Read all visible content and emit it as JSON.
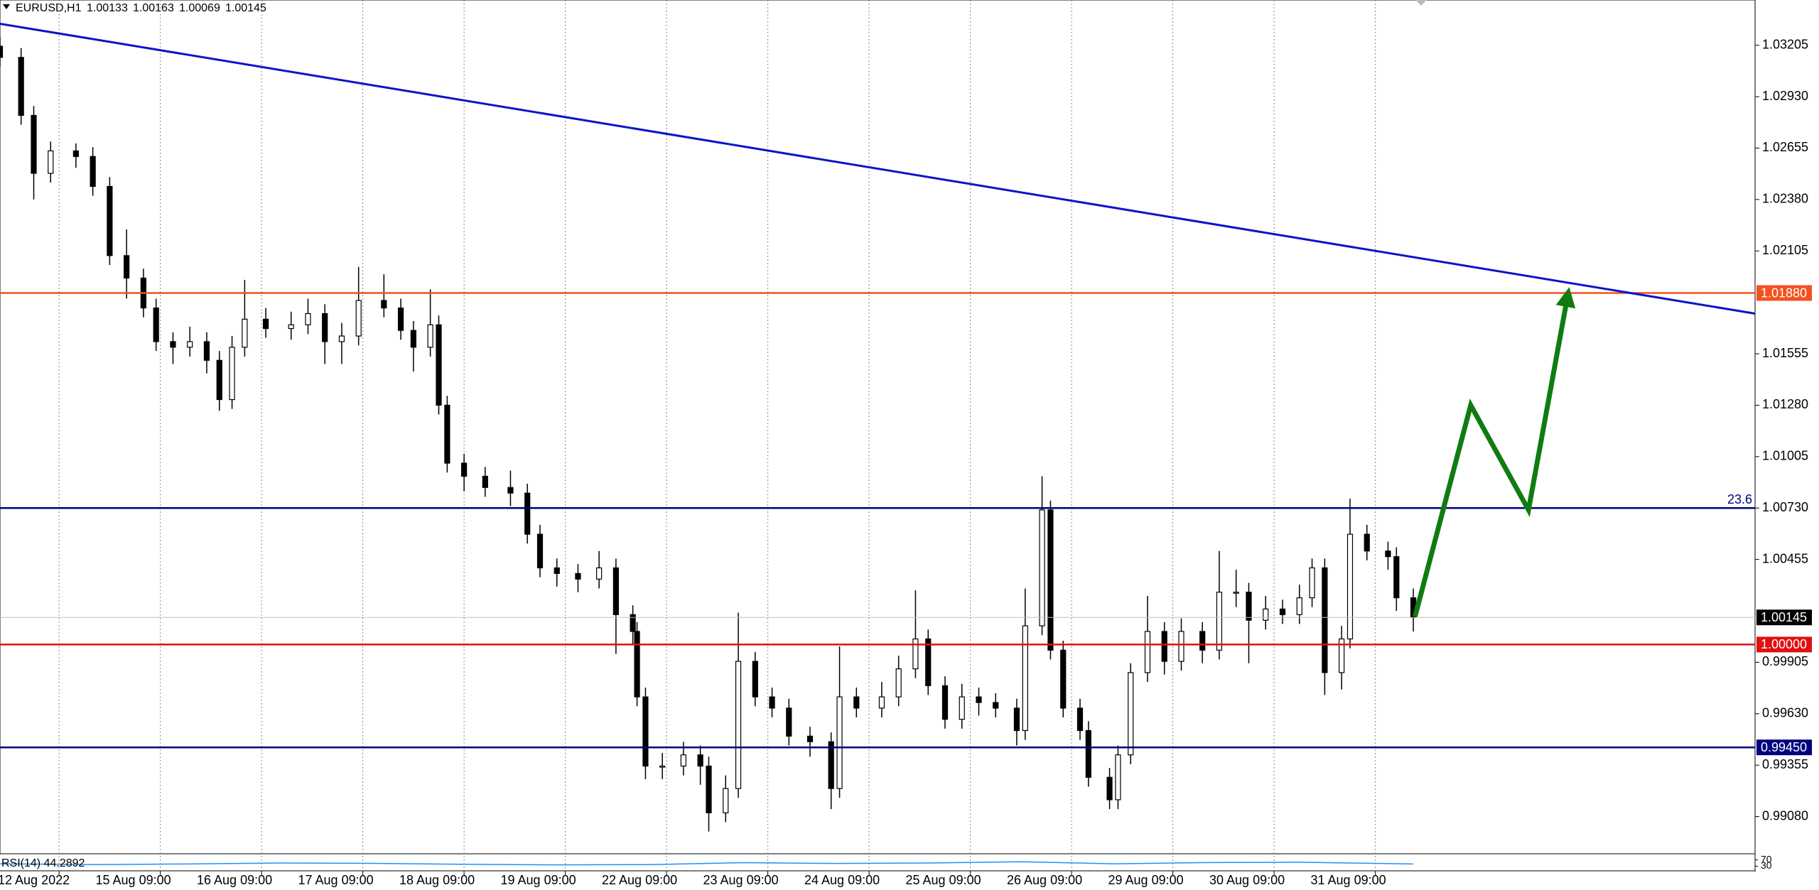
{
  "chart_data": {
    "type": "candlestick",
    "title": "EURUSD,H1",
    "quote": [
      1.00133,
      1.00163,
      1.00069,
      1.00145
    ],
    "x": [
      0,
      5,
      8,
      12,
      18,
      22,
      26,
      30,
      34,
      37,
      41,
      45,
      49,
      52,
      55,
      58,
      63,
      69,
      73,
      77,
      81,
      85,
      91,
      95,
      98,
      102,
      104,
      106,
      110,
      115,
      121,
      125,
      128,
      132,
      137,
      142,
      146,
      150,
      151,
      153,
      157,
      162,
      166,
      168,
      172,
      175,
      179,
      183,
      187,
      192,
      197,
      199,
      203,
      209,
      213,
      217,
      220,
      224,
      228,
      232,
      236,
      241,
      243,
      247,
      249,
      252,
      256,
      258,
      263,
      265,
      268,
      272,
      276,
      280,
      285,
      289,
      293,
      296,
      300,
      304,
      308,
      311,
      314,
      318,
      320,
      324,
      329,
      331,
      335
    ],
    "open": [
      1.032,
      1.0314,
      1.0283,
      1.0252,
      1.0264,
      1.0261,
      1.0245,
      1.0208,
      1.0196,
      1.018,
      1.0162,
      1.0159,
      1.0162,
      1.0152,
      1.0131,
      1.0159,
      1.0174,
      1.0169,
      1.0171,
      1.0177,
      1.0162,
      1.0165,
      1.0184,
      1.018,
      1.0168,
      1.0159,
      1.0171,
      1.0128,
      1.0097,
      1.009,
      1.0084,
      1.0081,
      1.0059,
      1.0041,
      1.0038,
      1.0035,
      1.0041,
      1.0016,
      1.0007,
      0.9972,
      0.9935,
      0.9935,
      0.9941,
      0.9935,
      0.991,
      0.9923,
      0.9991,
      0.9972,
      0.9966,
      0.9951,
      0.9948,
      0.9923,
      0.9972,
      0.9966,
      0.9972,
      0.9987,
      1.0003,
      0.9978,
      0.996,
      0.9972,
      0.9969,
      0.9966,
      0.9954,
      1.001,
      1.0072,
      0.9997,
      0.9966,
      0.9954,
      0.9929,
      0.9917,
      0.9941,
      0.9985,
      1.0007,
      0.9991,
      1.0007,
      0.9997,
      1.0028,
      1.0028,
      1.0013,
      1.0019,
      1.0016,
      1.0025,
      1.0041,
      0.9985,
      1.0003,
      1.0059,
      1.005,
      1.0047,
      1.0025
    ],
    "high": [
      1.0325,
      1.0319,
      1.0288,
      1.0269,
      1.0268,
      1.0266,
      1.025,
      1.0222,
      1.0201,
      1.0185,
      1.0167,
      1.017,
      1.0167,
      1.0157,
      1.0165,
      1.0195,
      1.018,
      1.0178,
      1.0185,
      1.0182,
      1.0172,
      1.0202,
      1.0198,
      1.0185,
      1.0173,
      1.019,
      1.0176,
      1.0133,
      1.0102,
      1.0095,
      1.0093,
      1.0086,
      1.0064,
      1.0046,
      1.0043,
      1.005,
      1.0046,
      1.0021,
      1.0012,
      0.9977,
      0.9942,
      0.9948,
      0.9946,
      0.994,
      0.993,
      1.0017,
      0.9996,
      0.9977,
      0.9971,
      0.9956,
      0.9953,
      0.9999,
      0.9977,
      0.998,
      0.9994,
      1.0029,
      1.0008,
      0.9983,
      0.9979,
      0.9977,
      0.9974,
      0.9971,
      1.003,
      1.009,
      1.0077,
      1.0002,
      0.9971,
      0.9959,
      0.9934,
      0.9946,
      0.999,
      1.0026,
      1.0012,
      1.0014,
      1.0012,
      1.005,
      1.004,
      1.0033,
      1.0026,
      1.0024,
      1.0032,
      1.0046,
      1.0046,
      1.001,
      1.0078,
      1.0064,
      1.0055,
      1.0052,
      1.003
    ],
    "low": [
      1.0309,
      1.0278,
      1.0238,
      1.0247,
      1.0255,
      1.024,
      1.0203,
      1.0185,
      1.0175,
      1.0157,
      1.015,
      1.0154,
      1.0145,
      1.0125,
      1.0126,
      1.0154,
      1.0164,
      1.0163,
      1.0166,
      1.015,
      1.015,
      1.016,
      1.0175,
      1.0163,
      1.0146,
      1.0154,
      1.0123,
      1.0092,
      1.0082,
      1.0079,
      1.0074,
      1.0054,
      1.0036,
      1.0031,
      1.0028,
      1.003,
      0.9995,
      1.0,
      0.9967,
      0.9928,
      0.9928,
      0.993,
      0.9925,
      0.99,
      0.9905,
      0.9918,
      0.9967,
      0.9961,
      0.9946,
      0.994,
      0.9912,
      0.9918,
      0.9961,
      0.9961,
      0.9967,
      0.9982,
      0.9973,
      0.9955,
      0.9955,
      0.9962,
      0.9961,
      0.9946,
      0.9949,
      1.0005,
      0.9992,
      0.9961,
      0.9949,
      0.9924,
      0.9912,
      0.9912,
      0.9936,
      0.998,
      0.9984,
      0.9986,
      0.999,
      0.9992,
      1.002,
      0.999,
      1.0008,
      1.0011,
      1.0011,
      1.002,
      0.9973,
      0.9976,
      0.9998,
      1.0045,
      1.004,
      1.0018,
      1.0007
    ],
    "close": [
      1.0314,
      1.0283,
      1.0252,
      1.0264,
      1.0261,
      1.0245,
      1.0208,
      1.0196,
      1.018,
      1.0162,
      1.0159,
      1.0162,
      1.0152,
      1.0131,
      1.0159,
      1.0174,
      1.0169,
      1.0171,
      1.0177,
      1.0162,
      1.0165,
      1.0184,
      1.018,
      1.0168,
      1.0159,
      1.0171,
      1.0128,
      1.0097,
      1.009,
      1.0084,
      1.0081,
      1.0059,
      1.0041,
      1.0038,
      1.0035,
      1.0041,
      1.0016,
      1.0007,
      0.9972,
      0.9935,
      0.9935,
      0.9941,
      0.9935,
      0.991,
      0.9923,
      0.9991,
      0.9972,
      0.9966,
      0.9951,
      0.9948,
      0.9923,
      0.9972,
      0.9966,
      0.9972,
      0.9987,
      1.0003,
      0.9978,
      0.996,
      0.9972,
      0.9969,
      0.9966,
      0.9954,
      1.001,
      1.0072,
      0.9997,
      0.9966,
      0.9954,
      0.9929,
      0.9917,
      0.9941,
      0.9985,
      1.0007,
      0.9991,
      1.0007,
      0.9997,
      1.0028,
      1.0028,
      1.0013,
      1.0019,
      1.0016,
      1.0025,
      1.0041,
      0.9985,
      1.0003,
      1.0059,
      1.005,
      1.0047,
      1.0025,
      1.00145
    ],
    "xlim": [
      0,
      416
    ],
    "ylim": [
      0.98881,
      1.03447
    ],
    "xticks": [
      {
        "value": 14,
        "label": "12 Aug 2022"
      },
      {
        "value": 38,
        "label": "15 Aug 09:00"
      },
      {
        "value": 62,
        "label": "16 Aug 09:00"
      },
      {
        "value": 86,
        "label": "17 Aug 09:00"
      },
      {
        "value": 110,
        "label": "18 Aug 09:00"
      },
      {
        "value": 134,
        "label": "19 Aug 09:00"
      },
      {
        "value": 158,
        "label": "22 Aug 09:00"
      },
      {
        "value": 182,
        "label": "23 Aug 09:00"
      },
      {
        "value": 206,
        "label": "24 Aug 09:00"
      },
      {
        "value": 230,
        "label": "25 Aug 09:00"
      },
      {
        "value": 254,
        "label": "26 Aug 09:00"
      },
      {
        "value": 278,
        "label": "29 Aug 09:00"
      },
      {
        "value": 302,
        "label": "30 Aug 09:00"
      },
      {
        "value": 326,
        "label": "31 Aug 09:00"
      }
    ],
    "yticks": [
      {
        "value": 1.03205,
        "label": "1.03205"
      },
      {
        "value": 1.0293,
        "label": "1.02930"
      },
      {
        "value": 1.02655,
        "label": "1.02655"
      },
      {
        "value": 1.0238,
        "label": "1.02380"
      },
      {
        "value": 1.02105,
        "label": "1.02105"
      },
      {
        "value": 1.01555,
        "label": "1.01555"
      },
      {
        "value": 1.0128,
        "label": "1.01280"
      },
      {
        "value": 1.01005,
        "label": "1.01005"
      },
      {
        "value": 1.0073,
        "label": "1.00730"
      },
      {
        "value": 1.00455,
        "label": "1.00455"
      },
      {
        "value": 0.99905,
        "label": "0.99905"
      },
      {
        "value": 0.9963,
        "label": "0.99630"
      },
      {
        "value": 0.99355,
        "label": "0.99355"
      },
      {
        "value": 0.9908,
        "label": "0.99080"
      }
    ],
    "grid": true,
    "levels": [
      {
        "value": 1.0188,
        "label": "1.01880",
        "color": "#f4511e"
      },
      {
        "value": 1.0,
        "label": "1.00000",
        "color": "#e01010"
      },
      {
        "value": 0.9945,
        "label": "0.99450",
        "color": "#000080"
      }
    ],
    "fib_level": {
      "value": 1.0073,
      "ratio": 23.6,
      "color": "#000080"
    },
    "current_price": 1.00145,
    "trendline": {
      "x": [
        0,
        416
      ],
      "y": [
        1.0332,
        1.0177
      ],
      "color": "#0a14c8"
    },
    "arrow": {
      "x": [
        335.4,
        348.6,
        362.3,
        371.7
      ],
      "y": [
        1.0015,
        1.0128,
        1.0072,
        1.0188
      ],
      "color": "#107c10"
    },
    "rsi": {
      "label": "RSI(14) 44.2892",
      "x": [
        0,
        22,
        44,
        66,
        88,
        110,
        132,
        154,
        176,
        198,
        220,
        242,
        264,
        286,
        308,
        335
      ],
      "values": [
        45,
        40,
        44,
        50,
        48,
        42,
        38,
        40,
        52,
        47,
        50,
        58,
        45,
        53,
        55,
        44
      ],
      "ylim": [
        0,
        100
      ],
      "yticks": [
        70,
        30
      ],
      "color": "#1e90ff"
    }
  }
}
